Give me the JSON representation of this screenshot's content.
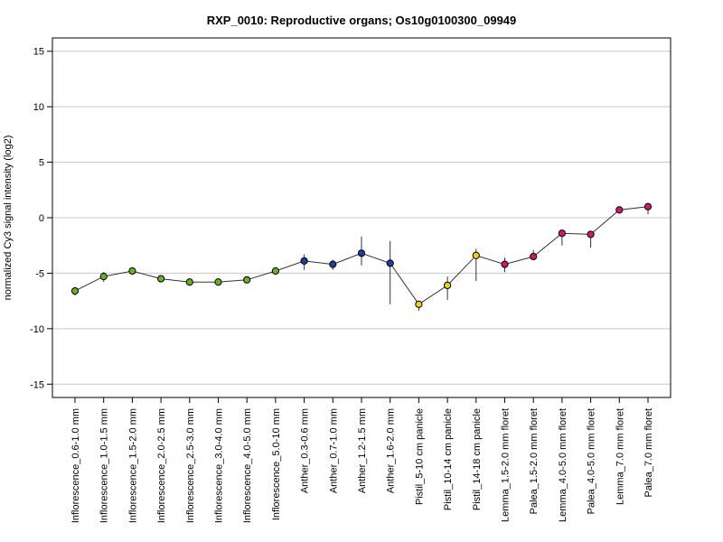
{
  "chart_data": {
    "type": "line",
    "title": "RXP_0010: Reproductive organs; Os10g0100300_09949",
    "xlabel": "",
    "ylabel": "normalized Cy3 signal intensity (log2)",
    "ylim": [
      -16.2,
      16.2
    ],
    "yticks": [
      -15,
      -10,
      -5,
      0,
      5,
      10,
      15
    ],
    "grid": true,
    "categories": [
      "Inflorescence_0.6-1.0 mm",
      "Inflorescence_1.0-1.5 mm",
      "Inflorescence_1.5-2.0 mm",
      "Inflorescence_2.0-2.5 mm",
      "Inflorescence_2.5-3.0 mm",
      "Inflorescence_3.0-4.0 mm",
      "Inflorescence_4.0-5.0 mm",
      "Inflorescence_5.0-10 mm",
      "Anther_0.3-0.6 mm",
      "Anther_0.7-1.0 mm",
      "Anther_1.2-1.5 mm",
      "Anther_1.6-2.0 mm",
      "Pistil_5-10 cm panicle",
      "Pistil_10-14 cm panicle",
      "Pistil_14-18 cm panicle",
      "Lemma_1.5-2.0 mm floret",
      "Palea_1.5-2.0 mm floret",
      "Lemma_4.0-5.0 mm floret",
      "Palea_4.0-5.0 mm floret",
      "Lemma_7.0 mm floret",
      "Palea_7.0 mm floret"
    ],
    "values": [
      -6.6,
      -5.3,
      -4.8,
      -5.5,
      -5.8,
      -5.8,
      -5.6,
      -4.8,
      -3.9,
      -4.2,
      -3.2,
      -4.1,
      -7.8,
      -6.1,
      -3.4,
      -4.2,
      -3.5,
      -1.4,
      -1.5,
      0.7,
      1.0
    ],
    "error_low": [
      -7.0,
      -5.8,
      -5.0,
      -5.6,
      -6.0,
      -5.9,
      -5.7,
      -5.1,
      -4.7,
      -4.7,
      -4.3,
      -7.8,
      -8.4,
      -7.4,
      -5.7,
      -4.9,
      -3.8,
      -2.5,
      -2.7,
      0.5,
      0.3
    ],
    "error_high": [
      -6.4,
      -4.9,
      -4.6,
      -5.4,
      -5.6,
      -5.7,
      -5.5,
      -4.6,
      -3.3,
      -3.8,
      -1.7,
      -2.1,
      -7.5,
      -5.3,
      -2.8,
      -3.6,
      -2.9,
      -1.3,
      -1.2,
      0.9,
      1.2
    ],
    "point_colors": [
      "#6ab023",
      "#6ab023",
      "#6ab023",
      "#6ab023",
      "#6ab023",
      "#6ab023",
      "#6ab023",
      "#6ab023",
      "#1f3fa0",
      "#1f3fa0",
      "#1f3fa0",
      "#1f3fa0",
      "#e8d21c",
      "#e8d21c",
      "#e8d21c",
      "#d2186e",
      "#d2186e",
      "#d2186e",
      "#d2186e",
      "#d2186e",
      "#d2186e"
    ],
    "line_color": "#333333",
    "grid_color": "#c8c8c8"
  }
}
